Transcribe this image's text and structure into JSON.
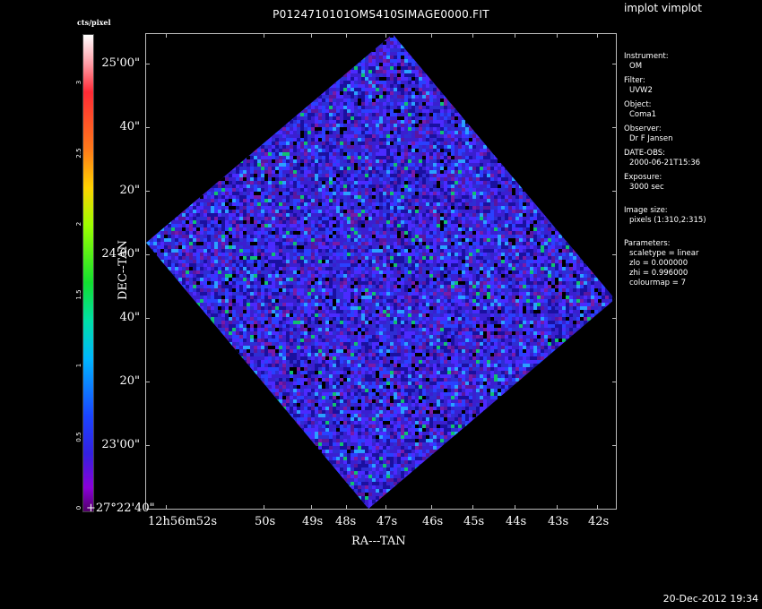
{
  "window": {
    "title": "P0124710101OMS410SIMAGE0000.FIT",
    "program": "implot vimplot",
    "timestamp": "20-Dec-2012 19:34"
  },
  "colorbar": {
    "title": "cts/pixel",
    "ticks": [
      "3",
      "2.5",
      "2",
      "1.5",
      "1",
      "0.5",
      "0"
    ]
  },
  "axes": {
    "xlabel": "RA---TAN",
    "ylabel": "DEC--TAN",
    "yticks": [
      "25'00\"",
      "40\"",
      "20\"",
      "24'00\"",
      "40\"",
      "20\"",
      "23'00\"",
      "+27°22'40\""
    ],
    "xticks": [
      "12h56m52s",
      "50s",
      "49s",
      "48s",
      "47s",
      "46s",
      "45s",
      "44s",
      "43s",
      "42s"
    ]
  },
  "info": [
    {
      "label": "Instrument:",
      "value": "OM"
    },
    {
      "label": "Filter:",
      "value": "UVW2"
    },
    {
      "label": "Object:",
      "value": "Coma1"
    },
    {
      "label": "Observer:",
      "value": "Dr F Jansen"
    },
    {
      "label": "DATE-OBS:",
      "value": "2000-06-21T15:36"
    },
    {
      "label": "Exposure:",
      "value": "3000 sec"
    },
    {
      "label": "Image size:",
      "value": "pixels (1:310,2:315)"
    },
    {
      "label": "Parameters:",
      "lines": [
        "scaletype = linear",
        "zlo = 0.000000",
        "zhi = 0.996000",
        "colourmap = 7"
      ]
    }
  ],
  "colors": {
    "background": "#000000",
    "text": "#ffffff",
    "image_base": "#2a2ad0"
  }
}
